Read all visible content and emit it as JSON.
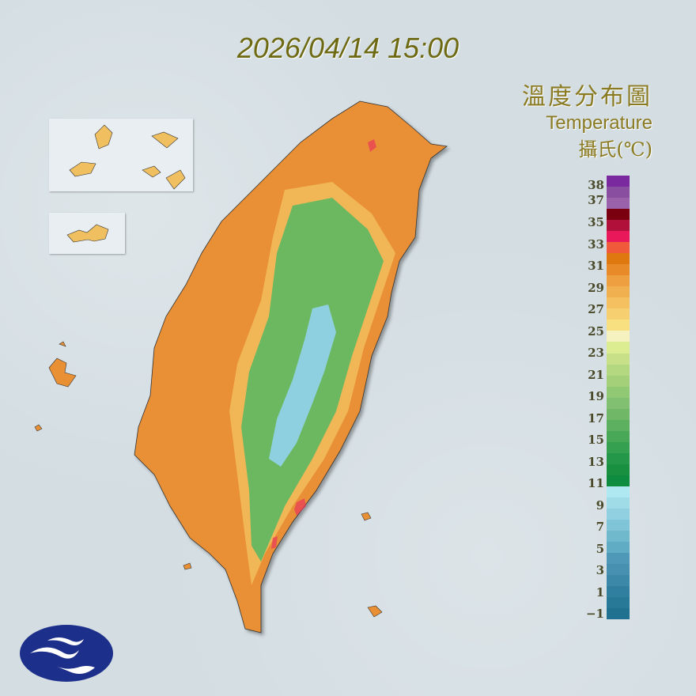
{
  "timestamp": "2026/04/14 15:00",
  "legend": {
    "title_zh": "溫度分布圖",
    "title_en": "Temperature",
    "unit": "攝氏(℃)",
    "labels": [
      "38",
      "37",
      "35",
      "33",
      "31",
      "29",
      "27",
      "25",
      "23",
      "21",
      "19",
      "17",
      "15",
      "13",
      "11",
      "9",
      "7",
      "5",
      "3",
      "1",
      "−1"
    ],
    "colors": [
      "#7a2a9e",
      "#8a4ea0",
      "#9a62aa",
      "#7a0010",
      "#b0103a",
      "#e8185a",
      "#f05a3a",
      "#e07810",
      "#e88a28",
      "#eea040",
      "#f0b050",
      "#f4c060",
      "#f6d070",
      "#f8e080",
      "#f6f2c0",
      "#dcec90",
      "#c8e088",
      "#b4d880",
      "#a4d07a",
      "#90c874",
      "#80c070",
      "#70b868",
      "#5cb060",
      "#48a858",
      "#34a050",
      "#249848",
      "#189040",
      "#0e8c40",
      "#b0e8f2",
      "#a0dce8",
      "#90d0e0",
      "#80c4d8",
      "#70b8cc",
      "#60acc4",
      "#5098b8",
      "#4890b0",
      "#3c88a8",
      "#307ea0",
      "#287898",
      "#207090"
    ]
  },
  "map_colors": {
    "lowland": "#e98f34",
    "hills": "#f2c060",
    "mountain": "#6cb860",
    "peak": "#8fd0e0",
    "hot": "#e8385a"
  }
}
